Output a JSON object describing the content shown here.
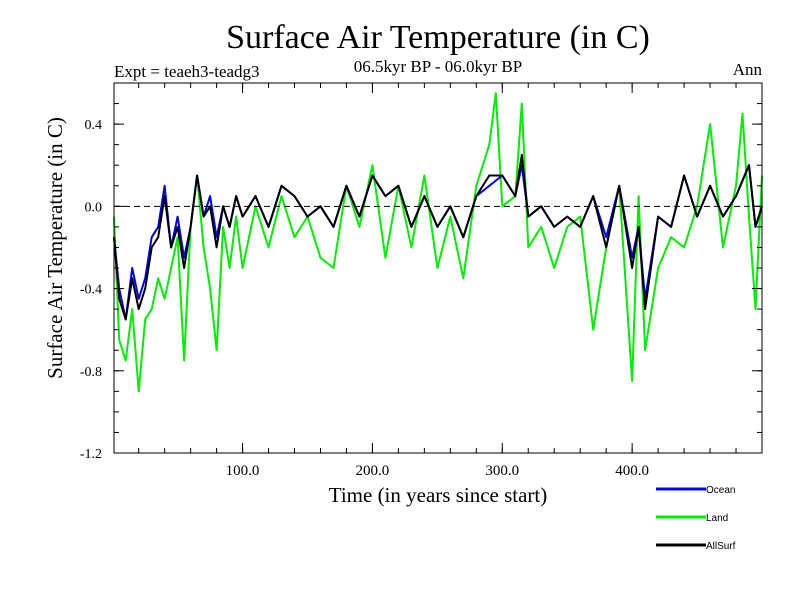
{
  "chart_data": {
    "type": "line",
    "title": "Surface Air Temperature (in C)",
    "subtitle": "06.5kyr BP - 06.0kyr BP",
    "experiment_label": "Expt = teaeh3-teadg3",
    "season_label": "Ann",
    "xlabel": "Time (in years since start)",
    "ylabel": "Surface Air Temperature (in C)",
    "xlim": [
      1,
      500
    ],
    "ylim": [
      -1.2,
      0.6
    ],
    "x_ticks": [
      100,
      200,
      300,
      400
    ],
    "x_tick_labels": [
      "100.0",
      "200.0",
      "300.0",
      "400.0"
    ],
    "y_ticks": [
      -1.2,
      -0.8,
      -0.4,
      0.0,
      0.4
    ],
    "y_tick_labels": [
      "-1.2",
      "-0.8",
      "-0.4",
      "0.0",
      "0.4"
    ],
    "reference_line": 0.0,
    "series": [
      {
        "name": "Land",
        "color": "#00ee00",
        "x": [
          1,
          5,
          10,
          15,
          20,
          25,
          30,
          35,
          40,
          45,
          50,
          55,
          60,
          65,
          70,
          75,
          80,
          85,
          90,
          95,
          100,
          110,
          120,
          130,
          140,
          150,
          160,
          170,
          180,
          190,
          200,
          210,
          220,
          230,
          240,
          250,
          260,
          270,
          280,
          290,
          295,
          300,
          310,
          315,
          320,
          330,
          340,
          350,
          360,
          370,
          380,
          390,
          400,
          405,
          410,
          420,
          430,
          440,
          450,
          460,
          470,
          480,
          485,
          490,
          495,
          500
        ],
        "values": [
          -0.05,
          -0.65,
          -0.75,
          -0.5,
          -0.9,
          -0.55,
          -0.5,
          -0.35,
          -0.45,
          -0.3,
          -0.15,
          -0.75,
          -0.1,
          0.15,
          -0.2,
          -0.4,
          -0.7,
          -0.1,
          -0.3,
          -0.05,
          -0.3,
          0.0,
          -0.2,
          0.05,
          -0.15,
          -0.05,
          -0.25,
          -0.3,
          0.1,
          -0.1,
          0.2,
          -0.25,
          0.1,
          -0.2,
          0.15,
          -0.3,
          -0.05,
          -0.35,
          0.1,
          0.3,
          0.55,
          0.0,
          0.05,
          0.5,
          -0.2,
          -0.1,
          -0.3,
          -0.1,
          -0.05,
          -0.6,
          -0.2,
          0.1,
          -0.85,
          0.05,
          -0.7,
          -0.3,
          -0.15,
          -0.2,
          0.0,
          0.4,
          -0.2,
          0.1,
          0.45,
          -0.05,
          -0.5,
          0.15
        ]
      },
      {
        "name": "Ocean",
        "color": "#0000ee",
        "x": [
          1,
          5,
          10,
          15,
          20,
          25,
          30,
          35,
          40,
          45,
          50,
          55,
          60,
          65,
          70,
          75,
          80,
          85,
          90,
          95,
          100,
          110,
          120,
          130,
          140,
          150,
          160,
          170,
          180,
          190,
          200,
          210,
          220,
          230,
          240,
          250,
          260,
          270,
          280,
          290,
          300,
          310,
          315,
          320,
          330,
          340,
          350,
          360,
          370,
          380,
          390,
          400,
          405,
          410,
          420,
          430,
          440,
          450,
          460,
          470,
          480,
          490,
          495,
          500
        ],
        "values": [
          -0.15,
          -0.4,
          -0.55,
          -0.3,
          -0.45,
          -0.35,
          -0.15,
          -0.1,
          0.1,
          -0.2,
          -0.05,
          -0.25,
          -0.1,
          0.15,
          -0.05,
          0.05,
          -0.15,
          0.0,
          -0.1,
          0.05,
          -0.05,
          0.05,
          -0.1,
          0.1,
          0.05,
          -0.05,
          0.0,
          -0.1,
          0.1,
          -0.05,
          0.15,
          0.05,
          0.1,
          -0.1,
          0.05,
          -0.1,
          0.0,
          -0.15,
          0.05,
          0.1,
          0.15,
          0.05,
          0.2,
          -0.05,
          0.0,
          -0.1,
          -0.05,
          -0.1,
          0.05,
          -0.15,
          0.1,
          -0.25,
          -0.1,
          -0.45,
          -0.05,
          -0.1,
          0.15,
          -0.05,
          0.1,
          -0.05,
          0.05,
          0.2,
          -0.1,
          0.0
        ]
      },
      {
        "name": "AllSurf",
        "color": "#000000",
        "x": [
          1,
          5,
          10,
          15,
          20,
          25,
          30,
          35,
          40,
          45,
          50,
          55,
          60,
          65,
          70,
          75,
          80,
          85,
          90,
          95,
          100,
          110,
          120,
          130,
          140,
          150,
          160,
          170,
          180,
          190,
          200,
          210,
          220,
          230,
          240,
          250,
          260,
          270,
          280,
          290,
          300,
          310,
          315,
          320,
          330,
          340,
          350,
          360,
          370,
          380,
          390,
          400,
          405,
          410,
          420,
          430,
          440,
          450,
          460,
          470,
          480,
          490,
          495,
          500
        ],
        "values": [
          -0.15,
          -0.45,
          -0.55,
          -0.35,
          -0.5,
          -0.4,
          -0.2,
          -0.15,
          0.05,
          -0.2,
          -0.1,
          -0.3,
          -0.1,
          0.15,
          -0.05,
          0.0,
          -0.2,
          0.0,
          -0.1,
          0.05,
          -0.05,
          0.05,
          -0.1,
          0.1,
          0.05,
          -0.05,
          0.0,
          -0.1,
          0.1,
          -0.05,
          0.15,
          0.05,
          0.1,
          -0.1,
          0.05,
          -0.1,
          0.0,
          -0.15,
          0.05,
          0.15,
          0.15,
          0.05,
          0.25,
          -0.05,
          0.0,
          -0.1,
          -0.05,
          -0.1,
          0.05,
          -0.2,
          0.1,
          -0.3,
          -0.1,
          -0.5,
          -0.05,
          -0.1,
          0.15,
          -0.05,
          0.1,
          -0.05,
          0.05,
          0.2,
          -0.1,
          0.0
        ]
      }
    ],
    "legend": [
      "Ocean",
      "Land",
      "AllSurf"
    ],
    "legend_position": "bottom-right"
  }
}
